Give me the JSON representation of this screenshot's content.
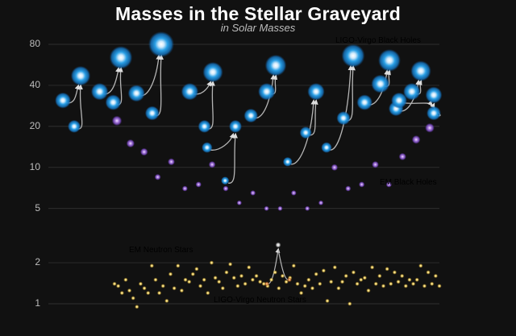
{
  "chart_data": {
    "type": "scatter",
    "title": "Masses in the Stellar Graveyard",
    "subtitle": "in Solar Masses",
    "y_scale": "log",
    "ylim": [
      0.8,
      110
    ],
    "y_ticks": [
      1,
      2,
      5,
      10,
      20,
      40,
      80
    ],
    "y_tick_labels": [
      "1",
      "2",
      "5",
      "10",
      "20",
      "40",
      "80"
    ],
    "grid": true,
    "colors": {
      "ligo_bh": "#1e90d8",
      "em_bh": "#8a5cc8",
      "em_ns": "#e8c85a",
      "ligo_ns": "#e0843a",
      "arrow": "#bbbbbb"
    },
    "legend": [
      {
        "label": "LIGO-Virgo Black Holes",
        "color": "#2d86cc"
      },
      {
        "label": "EM Black Holes",
        "color": "#9b7fd4"
      },
      {
        "label": "EM Neutron Stars",
        "color": "#d8c070"
      },
      {
        "label": "LIGO-Virgo Neutron Stars",
        "color": "#d27a36"
      }
    ],
    "ligo_mergers": [
      {
        "m1": 31,
        "m2": 20,
        "remnant": 47
      },
      {
        "m1": 36,
        "m2": 30,
        "remnant": 64
      },
      {
        "m1": 35,
        "m2": 25,
        "remnant": 80
      },
      {
        "m1": 36,
        "m2": 20,
        "remnant": 50
      },
      {
        "m1": 14,
        "m2": 8,
        "remnant": 20
      },
      {
        "m1": 24,
        "m2": 36,
        "remnant": 56
      },
      {
        "m1": 11,
        "m2": 18,
        "remnant": 36
      },
      {
        "m1": 14,
        "m2": 23,
        "remnant": 66
      },
      {
        "m1": 30,
        "m2": 41,
        "remnant": 61
      },
      {
        "m1": 27,
        "m2": 36,
        "remnant": 51
      },
      {
        "m1": 31,
        "m2": 25,
        "remnant": 34
      }
    ],
    "em_black_holes": [
      22,
      15,
      13,
      8.5,
      11,
      7,
      7.5,
      10.5,
      7,
      5.5,
      6.5,
      5,
      5,
      6.5,
      5,
      5.5,
      10,
      7,
      7.5,
      10.5,
      7.5,
      12,
      16,
      19.5
    ],
    "em_neutron_stars": [
      1.4,
      1.35,
      1.2,
      1.5,
      1.25,
      1.1,
      0.95,
      1.4,
      1.3,
      1.2,
      1.9,
      1.5,
      1.2,
      1.35,
      1.05,
      1.65,
      1.3,
      1.9,
      1.25,
      1.5,
      1.45,
      1.65,
      1.8,
      1.35,
      1.5,
      1.2,
      2.0,
      1.55,
      1.45,
      1.3,
      1.7,
      1.95,
      1.55,
      1.35,
      1.6,
      1.4,
      1.85,
      1.5,
      1.6,
      1.45,
      1.4,
      1.35,
      1.5,
      1.7,
      1.3,
      1.6,
      1.45,
      1.55,
      1.9,
      1.4,
      1.2,
      1.35,
      1.5,
      1.3,
      1.65,
      1.4,
      1.75,
      1.05,
      1.45,
      1.85,
      1.3,
      1.45,
      1.6,
      1.0,
      1.7,
      1.4,
      1.5,
      1.55,
      1.25,
      1.85,
      1.4,
      1.6,
      1.35,
      1.8,
      1.4,
      1.7,
      1.45,
      1.6,
      1.35,
      1.5,
      1.4,
      1.5,
      1.9,
      1.35,
      1.7,
      1.4,
      1.6,
      1.35
    ],
    "ligo_neutron_star_merger": {
      "m1": 1.4,
      "m2": 1.5,
      "remnant": 2.7
    }
  }
}
